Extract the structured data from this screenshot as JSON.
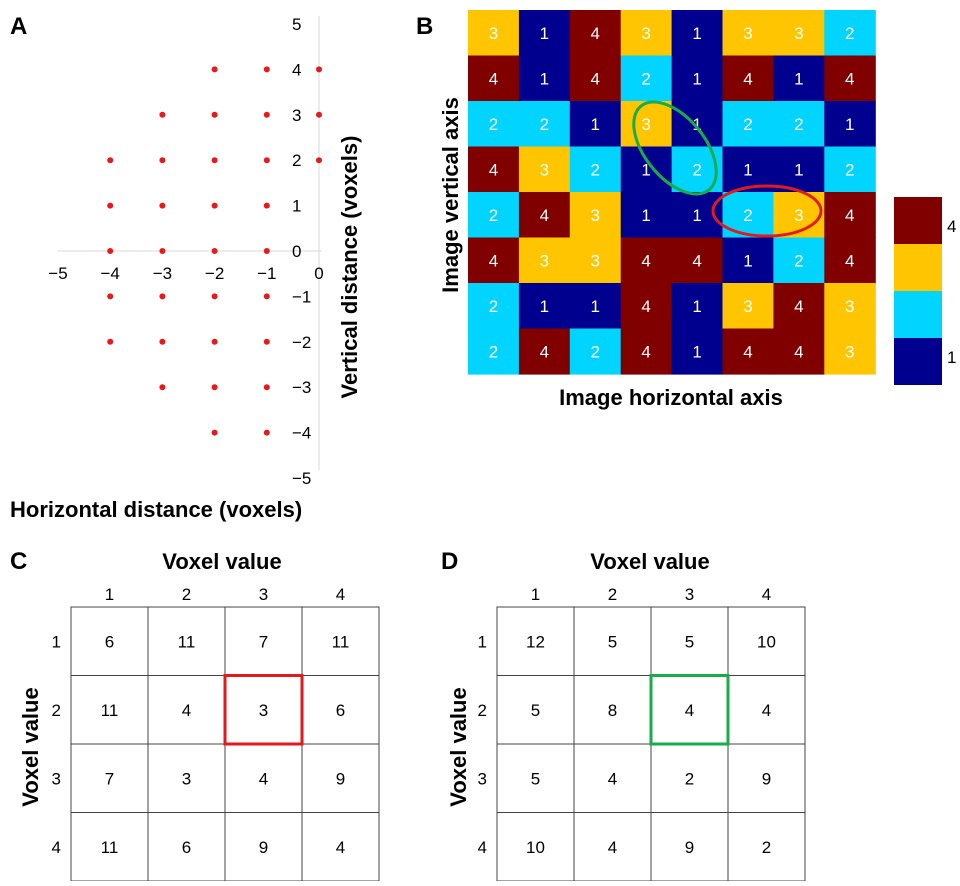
{
  "panels": {
    "A": {
      "label": "A",
      "xlabel": "Horizontal distance (voxels)",
      "ylabel": "Vertical distance (voxels)",
      "x_ticks": [
        "−5",
        "−4",
        "−3",
        "−2",
        "−1",
        "0"
      ],
      "y_ticks": [
        "5",
        "4",
        "3",
        "2",
        "1",
        "0",
        "−1",
        "−2",
        "−3",
        "−4",
        "−5"
      ],
      "offset_points": [
        [
          -2,
          4
        ],
        [
          -1,
          4
        ],
        [
          0,
          4
        ],
        [
          -3,
          3
        ],
        [
          -2,
          3
        ],
        [
          -1,
          3
        ],
        [
          0,
          3
        ],
        [
          -4,
          2
        ],
        [
          -3,
          2
        ],
        [
          -2,
          2
        ],
        [
          -1,
          2
        ],
        [
          0,
          2
        ],
        [
          -4,
          1
        ],
        [
          -3,
          1
        ],
        [
          -2,
          1
        ],
        [
          -1,
          1
        ],
        [
          -4,
          0
        ],
        [
          -3,
          0
        ],
        [
          -2,
          0
        ],
        [
          -1,
          0
        ],
        [
          -4,
          -1
        ],
        [
          -3,
          -1
        ],
        [
          -2,
          -1
        ],
        [
          -1,
          -1
        ],
        [
          -4,
          -2
        ],
        [
          -3,
          -2
        ],
        [
          -2,
          -2
        ],
        [
          -1,
          -2
        ],
        [
          -3,
          -3
        ],
        [
          -2,
          -3
        ],
        [
          -1,
          -3
        ],
        [
          -2,
          -4
        ],
        [
          -1,
          -4
        ]
      ],
      "point_color": "#e8191b"
    },
    "B": {
      "label": "B",
      "xlabel": "Image horizontal axis",
      "ylabel": "Image vertical axis",
      "grid": [
        [
          3,
          1,
          4,
          3,
          1,
          3,
          3,
          2
        ],
        [
          4,
          1,
          4,
          2,
          1,
          4,
          1,
          4
        ],
        [
          2,
          2,
          1,
          3,
          1,
          2,
          2,
          1
        ],
        [
          4,
          3,
          2,
          1,
          2,
          1,
          1,
          2
        ],
        [
          2,
          4,
          3,
          1,
          1,
          2,
          3,
          4
        ],
        [
          4,
          3,
          3,
          4,
          4,
          1,
          2,
          4
        ],
        [
          2,
          1,
          1,
          4,
          1,
          3,
          4,
          3
        ],
        [
          2,
          4,
          2,
          4,
          1,
          4,
          4,
          3
        ]
      ],
      "colors": {
        "1": "#00008f",
        "2": "#00d4ff",
        "3": "#ffc600",
        "4": "#800000"
      },
      "colorbar_top_label": "4",
      "colorbar_bottom_label": "1",
      "highlight_red_color": "#e31a1c",
      "highlight_green_color": "#1aab4b"
    },
    "C": {
      "label": "C",
      "top_title": "Voxel value",
      "side_title": "Voxel value",
      "col_labels": [
        "1",
        "2",
        "3",
        "4"
      ],
      "row_labels": [
        "1",
        "2",
        "3",
        "4"
      ],
      "matrix": [
        [
          "6",
          "11",
          "7",
          "11"
        ],
        [
          "11",
          "4",
          "3",
          "6"
        ],
        [
          "7",
          "3",
          "4",
          "9"
        ],
        [
          "11",
          "6",
          "9",
          "4"
        ]
      ],
      "highlight": {
        "row": 1,
        "col": 2,
        "color": "#e31a1c"
      }
    },
    "D": {
      "label": "D",
      "top_title": "Voxel value",
      "side_title": "Voxel value",
      "col_labels": [
        "1",
        "2",
        "3",
        "4"
      ],
      "row_labels": [
        "1",
        "2",
        "3",
        "4"
      ],
      "matrix": [
        [
          "12",
          "5",
          "5",
          "10"
        ],
        [
          "5",
          "8",
          "4",
          "4"
        ],
        [
          "5",
          "4",
          "2",
          "9"
        ],
        [
          "10",
          "4",
          "9",
          "2"
        ]
      ],
      "highlight": {
        "row": 1,
        "col": 2,
        "color": "#1aab4b"
      }
    }
  }
}
